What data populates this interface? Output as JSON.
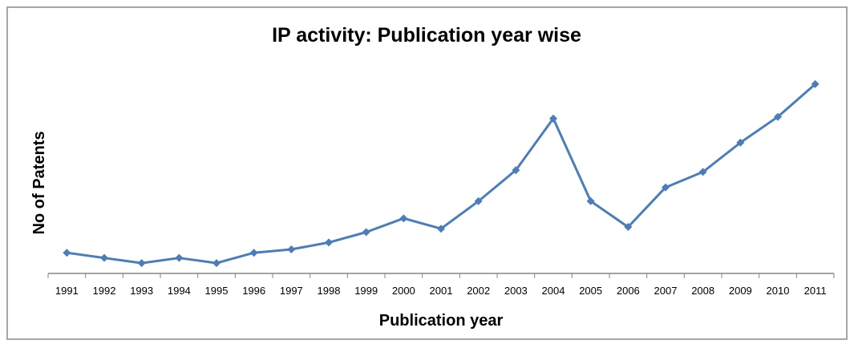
{
  "chart_data": {
    "type": "line",
    "title": "IP activity: Publication year wise",
    "xlabel": "Publication year",
    "ylabel": "No of Patents",
    "categories": [
      "1991",
      "1992",
      "1993",
      "1994",
      "1995",
      "1996",
      "1997",
      "1998",
      "1999",
      "2000",
      "2001",
      "2002",
      "2003",
      "2004",
      "2005",
      "2006",
      "2007",
      "2008",
      "2009",
      "2010",
      "2011"
    ],
    "series": [
      {
        "values": [
          12,
          9,
          6,
          9,
          6,
          12,
          14,
          18,
          24,
          32,
          26,
          42,
          60,
          90,
          42,
          27,
          50,
          59,
          76,
          91,
          110
        ]
      }
    ],
    "ylim": [
      0,
      130
    ],
    "grid": false,
    "legend": "none",
    "colors": {
      "line": "#4a7ebb",
      "marker": "#4a7ebb",
      "axis": "#868686",
      "border": "#a6a6a6"
    }
  }
}
